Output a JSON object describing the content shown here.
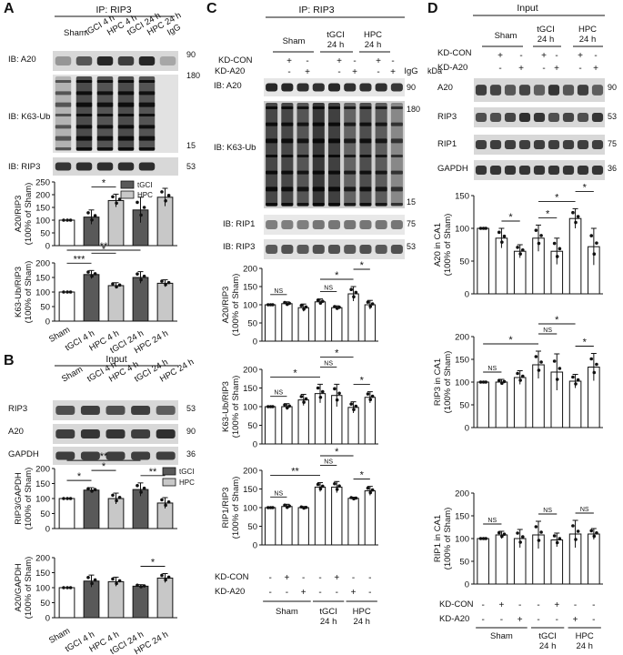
{
  "panelA": {
    "letter": "A",
    "header": "IP: RIP3",
    "lanes": [
      "Sham",
      "tGCI 4 h",
      "HPC 4 h",
      "tGCI 24 h",
      "HPC 24 h",
      "IgG"
    ],
    "blots": [
      {
        "label": "IB: A20",
        "kda": [
          "90"
        ]
      },
      {
        "label": "IB: K63-Ub",
        "kda": [
          "180",
          "15"
        ]
      },
      {
        "label": "IB: RIP3",
        "kda": [
          "53"
        ]
      }
    ],
    "legend": [
      {
        "name": "tGCI",
        "color": "#595959"
      },
      {
        "name": "HPC",
        "color": "#c8c8c8"
      }
    ],
    "xlabels": [
      "Sham",
      "tGCI 4 h",
      "HPC 4 h",
      "tGCI 24 h",
      "HPC 24 h"
    ]
  },
  "panelB": {
    "letter": "B",
    "header": "Input",
    "lanes": [
      "Sham",
      "tGCI 4 h",
      "HPC 4 h",
      "tGCI 24 h",
      "HPC 24 h"
    ],
    "blots": [
      {
        "label": "RIP3",
        "kda": [
          "53"
        ]
      },
      {
        "label": "A20",
        "kda": [
          "90"
        ]
      },
      {
        "label": "GAPDH",
        "kda": [
          "36"
        ]
      }
    ],
    "legend": [
      {
        "name": "tGCI",
        "color": "#595959"
      },
      {
        "name": "HPC",
        "color": "#c8c8c8"
      }
    ],
    "xlabels": [
      "Sham",
      "tGCI 4 h",
      "HPC 4 h",
      "tGCI 24 h",
      "HPC 24 h"
    ]
  },
  "panelC": {
    "letter": "C",
    "header": "IP: RIP3",
    "groups": [
      "Sham",
      "tGCI\n24 h",
      "HPC\n24 h"
    ],
    "kd_con_label": "KD-CON",
    "kd_a20_label": "KD-A20",
    "igg": "IgG",
    "kda_unit": "kDa",
    "blots": [
      {
        "label": "IB: A20",
        "kda": [
          "90"
        ]
      },
      {
        "label": "IB: K63-Ub",
        "kda": [
          "180",
          "15"
        ]
      },
      {
        "label": "IB: RIP1",
        "kda": [
          "75"
        ]
      },
      {
        "label": "IB: RIP3",
        "kda": [
          "53"
        ]
      }
    ],
    "bottom_kd_con": [
      "-",
      "+",
      "-",
      "-",
      "+",
      "-",
      "-",
      "+",
      "-"
    ],
    "bottom_kd_a20": [
      "-",
      "-",
      "+",
      "-",
      "-",
      "+",
      "-",
      "-",
      "+"
    ],
    "bottom_groups": [
      "Sham",
      "tGCI\n24 h",
      "HPC\n24 h"
    ]
  },
  "panelD": {
    "letter": "D",
    "header": "Input",
    "groups": [
      "Sham",
      "tGCI\n24 h",
      "HPC\n24 h"
    ],
    "kd_con_label": "KD-CON",
    "kd_a20_label": "KD-A20",
    "blots": [
      {
        "label": "A20",
        "kda": [
          "90"
        ]
      },
      {
        "label": "RIP3",
        "kda": [
          "53"
        ]
      },
      {
        "label": "RIP1",
        "kda": [
          "75"
        ]
      },
      {
        "label": "GAPDH",
        "kda": [
          "36"
        ]
      }
    ],
    "bottom_kd_con": [
      "-",
      "+",
      "-",
      "-",
      "+",
      "-",
      "-",
      "+",
      "-"
    ],
    "bottom_kd_a20": [
      "-",
      "-",
      "+",
      "-",
      "-",
      "+",
      "-",
      "-",
      "+"
    ],
    "bottom_groups": [
      "Sham",
      "tGCI\n24 h",
      "HPC\n24 h"
    ]
  },
  "kd_pattern": {
    "con": [
      "",
      "+",
      "-",
      "",
      "+",
      "-",
      "",
      "+",
      "-"
    ],
    "a20": [
      "",
      "-",
      "+",
      "",
      "-",
      "+",
      "",
      "-",
      "+"
    ]
  },
  "kda_unit": "kDa",
  "chart_data": [
    {
      "id": "A1",
      "type": "bar",
      "ylabel": "A20/RIP3\n(100% of Sham)",
      "ylim": [
        0,
        250
      ],
      "yticks": [
        0,
        50,
        100,
        150,
        200,
        250
      ],
      "categories": [
        "Sham",
        "tGCI 4 h",
        "HPC 4 h",
        "tGCI 24 h",
        "HPC 24 h"
      ],
      "values": [
        100,
        112,
        177,
        140,
        190
      ],
      "errors": [
        0,
        28,
        25,
        50,
        35
      ],
      "colors": [
        "#ffffff",
        "#595959",
        "#c8c8c8",
        "#595959",
        "#c8c8c8"
      ],
      "sig": [
        {
          "from": 1,
          "to": 2,
          "label": "*"
        }
      ]
    },
    {
      "id": "A2",
      "type": "bar",
      "ylabel": "K63-Ub/RIP3\n(100% of Sham)",
      "ylim": [
        0,
        200
      ],
      "yticks": [
        0,
        50,
        100,
        150,
        200
      ],
      "categories": [
        "Sham",
        "tGCI 4 h",
        "HPC 4 h",
        "tGCI 24 h",
        "HPC 24 h"
      ],
      "values": [
        100,
        160,
        122,
        150,
        130
      ],
      "errors": [
        0,
        14,
        10,
        20,
        12
      ],
      "colors": [
        "#ffffff",
        "#595959",
        "#c8c8c8",
        "#595959",
        "#c8c8c8"
      ],
      "sig": [
        {
          "from": 0,
          "to": 1,
          "label": "***"
        },
        {
          "from": 1,
          "to": 2,
          "label": "*"
        },
        {
          "from": 0,
          "to": 3,
          "label": "**"
        }
      ]
    },
    {
      "id": "B1",
      "type": "bar",
      "ylabel": "RIP3/GAPDH\n(100% of Sham)",
      "ylim": [
        0,
        200
      ],
      "yticks": [
        0,
        50,
        100,
        150,
        200
      ],
      "categories": [
        "Sham",
        "tGCI 4 h",
        "HPC 4 h",
        "tGCI 24 h",
        "HPC 24 h"
      ],
      "values": [
        100,
        128,
        100,
        130,
        85
      ],
      "errors": [
        0,
        8,
        18,
        22,
        18
      ],
      "colors": [
        "#ffffff",
        "#595959",
        "#c8c8c8",
        "#595959",
        "#c8c8c8"
      ],
      "sig": [
        {
          "from": 0,
          "to": 1,
          "label": "*"
        },
        {
          "from": 1,
          "to": 2,
          "label": "*"
        },
        {
          "from": 0,
          "to": 3,
          "label": "**"
        },
        {
          "from": 3,
          "to": 4,
          "label": "**"
        }
      ]
    },
    {
      "id": "B2",
      "type": "bar",
      "ylabel": "A20/GAPDH\n(100% of Sham)",
      "ylim": [
        0,
        200
      ],
      "yticks": [
        0,
        50,
        100,
        150,
        200
      ],
      "categories": [
        "Sham",
        "tGCI 4 h",
        "HPC 4 h",
        "tGCI 24 h",
        "HPC 24 h"
      ],
      "values": [
        100,
        122,
        120,
        105,
        132
      ],
      "errors": [
        0,
        20,
        15,
        5,
        15
      ],
      "colors": [
        "#ffffff",
        "#595959",
        "#c8c8c8",
        "#595959",
        "#c8c8c8"
      ],
      "sig": [
        {
          "from": 3,
          "to": 4,
          "label": "*"
        }
      ]
    },
    {
      "id": "C1",
      "type": "bar",
      "ylabel": "A20/RIP3\n(100% of Sham)",
      "ylim": [
        0,
        200
      ],
      "yticks": [
        0,
        50,
        100,
        150,
        200
      ],
      "values": [
        100,
        103,
        92,
        108,
        92,
        130,
        100
      ],
      "errors": [
        0,
        5,
        10,
        8,
        5,
        20,
        12
      ],
      "sig": [
        {
          "from": 0,
          "to": 1,
          "label": "NS"
        },
        {
          "from": 3,
          "to": 4,
          "label": "NS"
        },
        {
          "from": 3,
          "to": 5,
          "label": "*"
        },
        {
          "from": 5,
          "to": 6,
          "label": "*"
        }
      ]
    },
    {
      "id": "C2",
      "type": "bar",
      "ylabel": "K63-Ub/RIP3\n(100% of Sham)",
      "ylim": [
        0,
        200
      ],
      "yticks": [
        0,
        50,
        100,
        150,
        200
      ],
      "values": [
        100,
        100,
        118,
        135,
        130,
        98,
        125
      ],
      "errors": [
        0,
        8,
        15,
        25,
        30,
        15,
        15
      ],
      "sig": [
        {
          "from": 0,
          "to": 1,
          "label": "NS"
        },
        {
          "from": 0,
          "to": 3,
          "label": "*"
        },
        {
          "from": 3,
          "to": 4,
          "label": "NS"
        },
        {
          "from": 3,
          "to": 5,
          "label": "*"
        },
        {
          "from": 5,
          "to": 6,
          "label": "*"
        }
      ]
    },
    {
      "id": "C3",
      "type": "bar",
      "ylabel": "RIP1/RIP3\n(100% of Sham)",
      "ylim": [
        0,
        200
      ],
      "yticks": [
        0,
        50,
        100,
        150,
        200
      ],
      "values": [
        100,
        103,
        100,
        155,
        155,
        125,
        145
      ],
      "errors": [
        0,
        6,
        3,
        12,
        15,
        3,
        12
      ],
      "sig": [
        {
          "from": 0,
          "to": 1,
          "label": "NS"
        },
        {
          "from": 0,
          "to": 3,
          "label": "**"
        },
        {
          "from": 3,
          "to": 4,
          "label": "NS"
        },
        {
          "from": 3,
          "to": 5,
          "label": "*"
        },
        {
          "from": 5,
          "to": 6,
          "label": "*"
        }
      ]
    },
    {
      "id": "D1",
      "type": "bar",
      "ylabel": "A20  in CA1\n(100% of Sham)",
      "ylim": [
        0,
        150
      ],
      "yticks": [
        0,
        50,
        100,
        150
      ],
      "values": [
        100,
        85,
        65,
        85,
        65,
        115,
        72
      ],
      "errors": [
        0,
        15,
        10,
        20,
        20,
        15,
        28
      ],
      "sig": [
        {
          "from": 1,
          "to": 2,
          "label": "*"
        },
        {
          "from": 3,
          "to": 4,
          "label": "*"
        },
        {
          "from": 3,
          "to": 5,
          "label": "*"
        },
        {
          "from": 5,
          "to": 6,
          "label": "*"
        }
      ]
    },
    {
      "id": "D2",
      "type": "bar",
      "ylabel": "RIP3  in CA1\n(100% of Sham)",
      "ylim": [
        0,
        200
      ],
      "yticks": [
        0,
        50,
        100,
        150,
        200
      ],
      "values": [
        100,
        100,
        110,
        138,
        122,
        102,
        133
      ],
      "errors": [
        0,
        6,
        15,
        30,
        40,
        15,
        30
      ],
      "sig": [
        {
          "from": 0,
          "to": 1,
          "label": "NS"
        },
        {
          "from": 0,
          "to": 3,
          "label": "*"
        },
        {
          "from": 3,
          "to": 4,
          "label": "NS"
        },
        {
          "from": 3,
          "to": 5,
          "label": "*"
        },
        {
          "from": 5,
          "to": 6,
          "label": "*"
        }
      ]
    },
    {
      "id": "D3",
      "type": "bar",
      "ylabel": "RIP1  in CA1\n(100% of Sham)",
      "ylim": [
        0,
        200
      ],
      "yticks": [
        0,
        50,
        100,
        150,
        200
      ],
      "values": [
        100,
        108,
        100,
        108,
        97,
        110,
        110
      ],
      "errors": [
        0,
        8,
        20,
        30,
        15,
        30,
        12
      ],
      "sig": [
        {
          "from": 0,
          "to": 1,
          "label": "NS"
        },
        {
          "from": 3,
          "to": 4,
          "label": "NS"
        },
        {
          "from": 5,
          "to": 6,
          "label": "NS"
        }
      ]
    }
  ]
}
